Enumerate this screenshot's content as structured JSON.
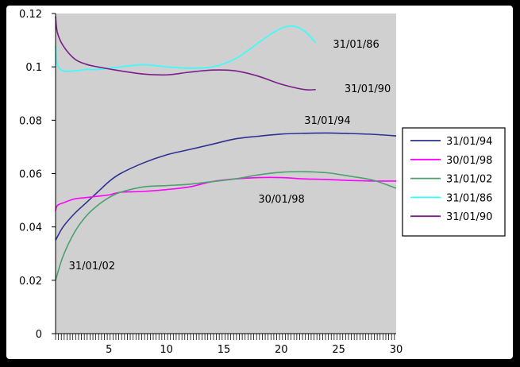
{
  "chart_data": {
    "type": "line",
    "title": "",
    "xlabel": "",
    "ylabel": "",
    "xlim": [
      0,
      30
    ],
    "ylim": [
      0,
      0.12
    ],
    "x_ticks": [
      "5",
      "10",
      "15",
      "20",
      "25",
      "30"
    ],
    "y_ticks": [
      "0",
      "0.02",
      "0.04",
      "0.06",
      "0.08",
      "0.1",
      "0.12"
    ],
    "grid": false,
    "legend_position": "right",
    "series": [
      {
        "name": "31/01/94",
        "color": "#2e3192",
        "x": [
          0,
          1,
          2,
          3,
          4,
          5,
          6,
          8,
          10,
          12,
          14,
          16,
          18,
          20,
          22,
          24,
          26,
          28,
          30
        ],
        "values": [
          0.035,
          0.04,
          0.045,
          0.049,
          0.053,
          0.057,
          0.06,
          0.064,
          0.067,
          0.069,
          0.071,
          0.073,
          0.074,
          0.0748,
          0.0751,
          0.0752,
          0.075,
          0.0747,
          0.0741
        ]
      },
      {
        "name": "30/01/98",
        "color": "#ff00ff",
        "x": [
          0,
          0.5,
          1,
          2,
          3,
          4,
          5,
          6,
          8,
          10,
          12,
          14,
          16,
          18,
          20,
          22,
          24,
          26,
          28,
          30
        ],
        "values": [
          0.046,
          0.048,
          0.049,
          0.0505,
          0.051,
          0.0515,
          0.052,
          0.053,
          0.0533,
          0.054,
          0.055,
          0.057,
          0.058,
          0.0585,
          0.0585,
          0.058,
          0.0578,
          0.0574,
          0.0572,
          0.0572
        ]
      },
      {
        "name": "31/01/02",
        "color": "#4c9f6f",
        "x": [
          0,
          1,
          2,
          3,
          4,
          5,
          6,
          8,
          10,
          12,
          14,
          16,
          18,
          20,
          22,
          24,
          26,
          28,
          30
        ],
        "values": [
          0.02,
          0.029,
          0.038,
          0.044,
          0.048,
          0.051,
          0.053,
          0.055,
          0.0555,
          0.056,
          0.057,
          0.058,
          0.0595,
          0.0605,
          0.0607,
          0.0603,
          0.059,
          0.0575,
          0.0545
        ]
      },
      {
        "name": "31/01/86",
        "color": "#33ffff",
        "x": [
          0,
          0.5,
          1,
          2,
          3,
          4,
          6,
          8,
          10,
          12,
          14,
          16,
          18,
          19,
          20,
          21,
          22,
          23
        ],
        "values": [
          0.108,
          0.101,
          0.0985,
          0.0985,
          0.099,
          0.099,
          0.1,
          0.1008,
          0.1,
          0.0995,
          0.1,
          0.103,
          0.109,
          0.112,
          0.1145,
          0.1153,
          0.1135,
          0.109
        ]
      },
      {
        "name": "31/01/90",
        "color": "#7a1f8a",
        "x": [
          0,
          0.5,
          1,
          2,
          3,
          4,
          6,
          8,
          10,
          12,
          14,
          16,
          18,
          20,
          22,
          23
        ],
        "values": [
          0.119,
          0.113,
          0.108,
          0.103,
          0.101,
          0.1,
          0.0985,
          0.0973,
          0.097,
          0.098,
          0.0988,
          0.0985,
          0.0965,
          0.0935,
          0.0915,
          0.0915
        ]
      }
    ],
    "annotations": [
      {
        "text": "31/01/86",
        "x": 24.5,
        "y": 0.1072
      },
      {
        "text": "31/01/90",
        "x": 25.5,
        "y": 0.0905
      },
      {
        "text": "31/01/94",
        "x": 22,
        "y": 0.0786
      },
      {
        "text": "30/01/98",
        "x": 18,
        "y": 0.0491
      },
      {
        "text": "31/01/02",
        "x": 1.5,
        "y": 0.0241
      }
    ]
  }
}
